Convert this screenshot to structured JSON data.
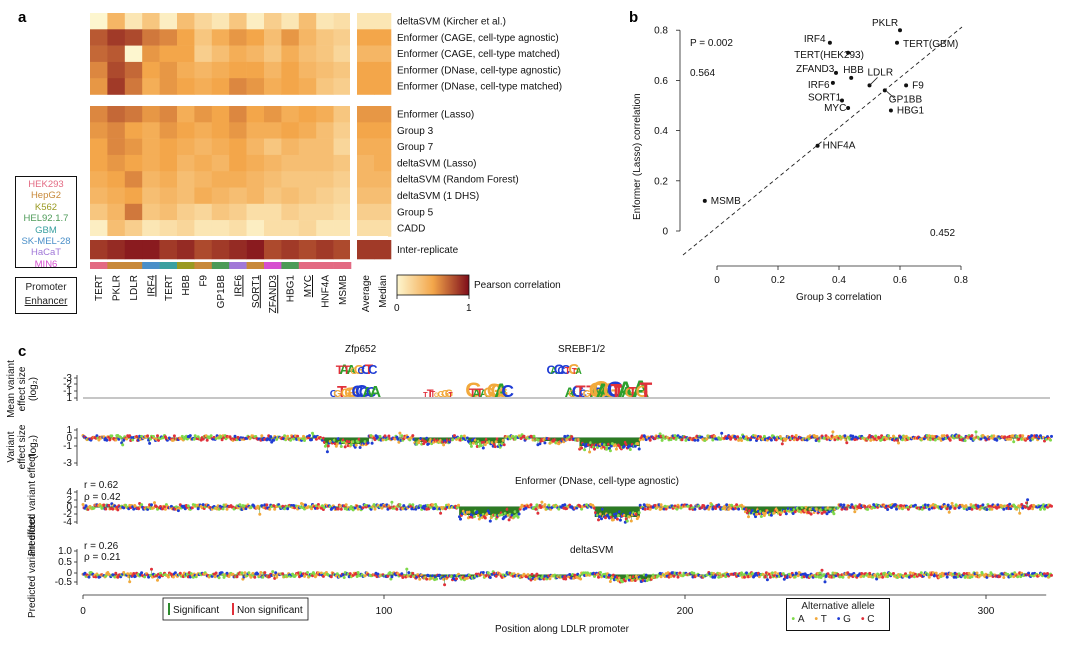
{
  "panels": {
    "a": "a",
    "b": "b",
    "c": "c"
  },
  "cell_types": [
    {
      "name": "HEK293",
      "color": "#e36a83"
    },
    {
      "name": "HepG2",
      "color": "#c8893a"
    },
    {
      "name": "K562",
      "color": "#9a9a22"
    },
    {
      "name": "HEL92.1.7",
      "color": "#4c9a57"
    },
    {
      "name": "GBM",
      "color": "#3aa0a0"
    },
    {
      "name": "SK-MEL-28",
      "color": "#4a8fc8"
    },
    {
      "name": "HaCaT",
      "color": "#a178d8"
    },
    {
      "name": "MIN6",
      "color": "#d64fd0"
    }
  ],
  "regulatory_legend": {
    "promoter": "Promoter",
    "enhancer": "Enhancer"
  },
  "colors": {
    "heat_low": "#fdf6cf",
    "heat_mid": "#f3a64a",
    "heat_high": "#7e0c1a",
    "green": "#2d6a1a",
    "sig": "#2e8b2e",
    "nonsig": "#e0303a",
    "allele_A": "#7fd94a",
    "allele_T": "#f2a93b",
    "allele_G": "#1f3cd4",
    "allele_C": "#e0303a"
  },
  "chart_data": [
    {
      "type": "heatmap",
      "rows": [
        "deltaSVM (Kircher et al.)",
        "Enformer (CAGE, cell-type agnostic)",
        "Enformer (CAGE, cell-type matched)",
        "Enformer (DNase, cell-type agnostic)",
        "Enformer (DNase, cell-type matched)",
        "Enformer (Lasso)",
        "Group 3",
        "Group 7",
        "deltaSVM (Lasso)",
        "deltaSVM (Random Forest)",
        "deltaSVM (1 DHS)",
        "Group 5",
        "CADD",
        "Inter-replicate"
      ],
      "columns": [
        "TERT",
        "PKLR",
        "LDLR",
        "IRF4",
        "TERT",
        "HBB",
        "F9",
        "GP1BB",
        "IRF6",
        "SORT1",
        "ZFAND3",
        "HBG1",
        "MYC",
        "HNF4A",
        "MSMB"
      ],
      "underlined_columns": [
        "IRF4",
        "IRF6",
        "SORT1",
        "ZFAND3",
        "MYC"
      ],
      "column_cell_types": [
        "HEK293",
        "HepG2",
        "HepG2",
        "SK-MEL-28",
        "GBM",
        "K562",
        "HepG2",
        "HEL92.1.7",
        "HaCaT",
        "HepG2",
        "MIN6",
        "HEL92.1.7",
        "HEK293",
        "HEK293",
        "HEK293"
      ],
      "summary_columns": [
        "Average",
        "Median"
      ],
      "values": [
        [
          0.0,
          0.4,
          0.1,
          0.3,
          0.05,
          0.35,
          0.2,
          0.1,
          0.3,
          0.05,
          0.25,
          0.1,
          0.35,
          0.1,
          0.15,
          0.1,
          0.1
        ],
        [
          0.75,
          0.85,
          0.8,
          0.65,
          0.6,
          0.5,
          0.3,
          0.45,
          0.55,
          0.5,
          0.35,
          0.55,
          0.4,
          0.3,
          0.25,
          0.5,
          0.5
        ],
        [
          0.7,
          0.75,
          0.0,
          0.55,
          0.5,
          0.5,
          0.25,
          0.35,
          0.45,
          0.4,
          0.3,
          0.45,
          0.35,
          0.3,
          0.2,
          0.4,
          0.4
        ],
        [
          0.6,
          0.8,
          0.7,
          0.5,
          0.55,
          0.45,
          0.4,
          0.45,
          0.5,
          0.5,
          0.4,
          0.5,
          0.4,
          0.35,
          0.3,
          0.5,
          0.5
        ],
        [
          0.55,
          0.85,
          0.65,
          0.45,
          0.55,
          0.5,
          0.45,
          0.5,
          0.6,
          0.55,
          0.45,
          0.5,
          0.45,
          0.3,
          0.25,
          0.5,
          0.5
        ],
        [
          0.6,
          0.7,
          0.65,
          0.55,
          0.6,
          0.45,
          0.55,
          0.5,
          0.6,
          0.5,
          0.55,
          0.45,
          0.5,
          0.45,
          0.3,
          0.55,
          0.55
        ],
        [
          0.55,
          0.6,
          0.5,
          0.45,
          0.55,
          0.5,
          0.45,
          0.5,
          0.55,
          0.45,
          0.45,
          0.5,
          0.45,
          0.35,
          0.25,
          0.5,
          0.5
        ],
        [
          0.5,
          0.6,
          0.55,
          0.45,
          0.5,
          0.45,
          0.4,
          0.45,
          0.5,
          0.4,
          0.3,
          0.4,
          0.35,
          0.35,
          0.2,
          0.45,
          0.45
        ],
        [
          0.5,
          0.55,
          0.5,
          0.45,
          0.5,
          0.4,
          0.45,
          0.4,
          0.5,
          0.45,
          0.4,
          0.35,
          0.35,
          0.35,
          0.3,
          0.4,
          0.45
        ],
        [
          0.45,
          0.5,
          0.6,
          0.4,
          0.45,
          0.35,
          0.4,
          0.45,
          0.45,
          0.4,
          0.35,
          0.3,
          0.3,
          0.3,
          0.25,
          0.4,
          0.4
        ],
        [
          0.4,
          0.45,
          0.5,
          0.35,
          0.4,
          0.35,
          0.45,
          0.4,
          0.35,
          0.4,
          0.3,
          0.35,
          0.3,
          0.25,
          0.2,
          0.35,
          0.35
        ],
        [
          0.3,
          0.4,
          0.65,
          0.3,
          0.35,
          0.25,
          0.2,
          0.3,
          0.25,
          0.15,
          0.15,
          0.25,
          0.2,
          0.2,
          0.15,
          0.25,
          0.25
        ],
        [
          0.05,
          0.35,
          0.25,
          0.1,
          0.15,
          0.2,
          0.1,
          0.1,
          0.15,
          0.05,
          0.15,
          0.15,
          0.2,
          0.1,
          0.1,
          0.15,
          0.15
        ],
        [
          0.85,
          0.9,
          0.95,
          0.95,
          0.85,
          0.9,
          0.8,
          0.85,
          0.9,
          0.95,
          0.8,
          0.85,
          0.8,
          0.85,
          0.8,
          0.85,
          0.85
        ]
      ],
      "colorbar": {
        "label": "Pearson correlation",
        "ticks": [
          "0",
          "1"
        ],
        "range": [
          0,
          1
        ]
      }
    },
    {
      "type": "scatter",
      "xlabel": "Group 3 correlation",
      "ylabel": "Enformer (Lasso) correlation",
      "xlim": [
        -0.05,
        0.8
      ],
      "ylim": [
        -0.05,
        0.82
      ],
      "xticks": [
        "0",
        "0.2",
        "0.4",
        "0.6",
        "0.8"
      ],
      "yticks": [
        "0",
        "0.2",
        "0.4",
        "0.6",
        "0.8"
      ],
      "annotations": {
        "p_value": "P = 0.002",
        "upper_value": "0.564",
        "lower_value": "0.452"
      },
      "diagonal": true,
      "points": [
        {
          "label": "PKLR",
          "x": 0.6,
          "y": 0.8
        },
        {
          "label": "TERT(GBM)",
          "x": 0.59,
          "y": 0.75
        },
        {
          "label": "IRF4",
          "x": 0.37,
          "y": 0.75
        },
        {
          "label": "TERT(HEK293)",
          "x": 0.43,
          "y": 0.71
        },
        {
          "label": "ZFAND3",
          "x": 0.39,
          "y": 0.63
        },
        {
          "label": "HBB",
          "x": 0.44,
          "y": 0.61
        },
        {
          "label": "LDLR",
          "x": 0.5,
          "y": 0.58
        },
        {
          "label": "IRF6",
          "x": 0.38,
          "y": 0.59
        },
        {
          "label": "F9",
          "x": 0.62,
          "y": 0.58
        },
        {
          "label": "GP1BB",
          "x": 0.55,
          "y": 0.56
        },
        {
          "label": "SORT1",
          "x": 0.41,
          "y": 0.52
        },
        {
          "label": "MYC",
          "x": 0.43,
          "y": 0.49
        },
        {
          "label": "HBG1",
          "x": 0.57,
          "y": 0.48
        },
        {
          "label": "HNF4A",
          "x": 0.33,
          "y": 0.34
        },
        {
          "label": "MSMB",
          "x": -0.04,
          "y": 0.12
        }
      ]
    },
    {
      "type": "line",
      "title_motifs": [
        "Zfp652",
        "SREBF1/2"
      ],
      "xlabel": "Position along LDLR promoter",
      "xlim": [
        0,
        320
      ],
      "xticks": [
        "0",
        "100",
        "200",
        "300"
      ],
      "tracks": [
        {
          "ylabel": "Mean variant effect size (log2)",
          "yticks": [
            "-3",
            "-2",
            "-1",
            "1"
          ],
          "kind": "logo"
        },
        {
          "ylabel": "Variant effect size (log2)",
          "yticks": [
            "1",
            "0",
            "-1",
            "-3"
          ],
          "kind": "lollipop"
        },
        {
          "title": "Enformer (DNase, cell-type agnostic)",
          "ylabel": "Predicted variant effect",
          "yticks": [
            "4",
            "2",
            "0",
            "-2",
            "-4"
          ],
          "r": "r = 0.62",
          "rho": "ρ = 0.42",
          "kind": "lollipop"
        },
        {
          "title": "deltaSVM",
          "ylabel": "Predicted variant effect",
          "yticks": [
            "1.0",
            "0.5",
            "0",
            "-0.5"
          ],
          "r": "r = 0.26",
          "rho": "ρ = 0.21",
          "kind": "lollipop"
        }
      ],
      "significance_legend": {
        "significant": "Significant",
        "non_significant": "Non significant"
      },
      "allele_legend": {
        "title": "Alternative allele",
        "alleles": [
          "A",
          "T",
          "G",
          "C"
        ]
      }
    }
  ]
}
